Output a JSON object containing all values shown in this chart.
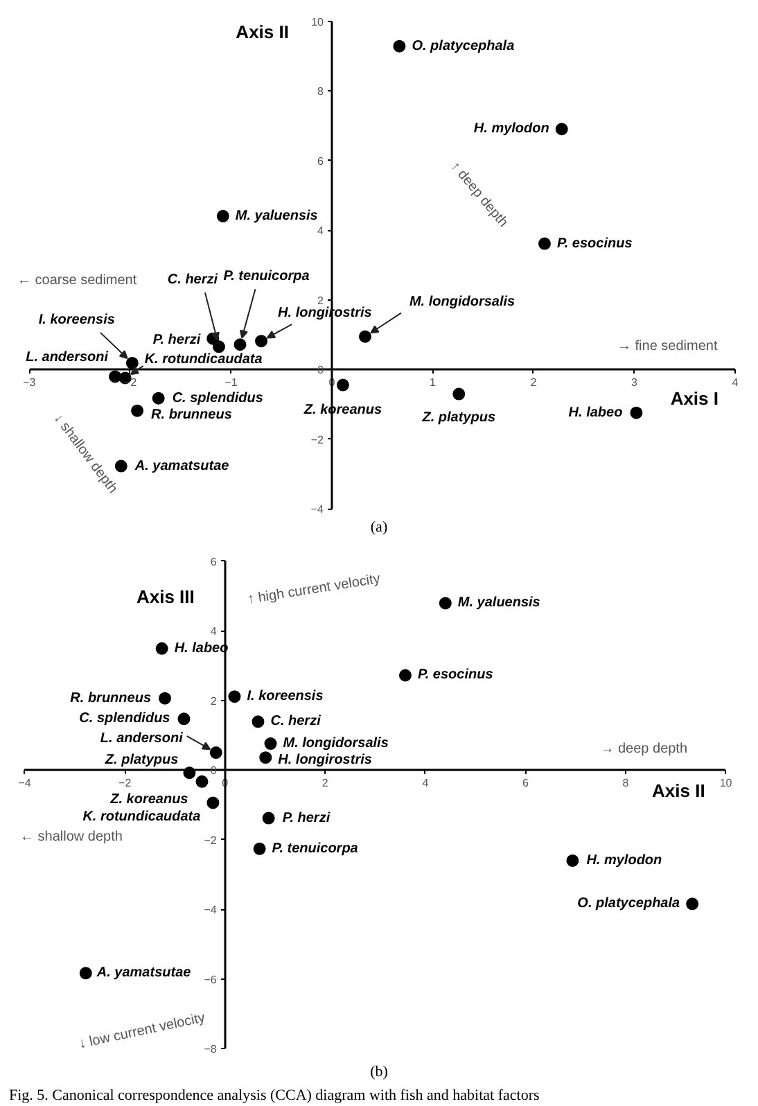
{
  "chart_data": [
    {
      "type": "scatter",
      "xlabel": "Axis I",
      "ylabel": "Axis II",
      "xlim": [
        -3,
        4
      ],
      "ylim": [
        -4,
        10
      ],
      "xticks": [
        -3,
        -2,
        -1,
        0,
        1,
        2,
        3,
        4
      ],
      "yticks": [
        -4,
        -2,
        0,
        2,
        4,
        6,
        8,
        10
      ],
      "marker": "circle",
      "annotations": [
        "← coarse sediment",
        "→ fine sediment",
        "↑ deep depth",
        "↓ shallow depth",
        "(a)"
      ],
      "series": [
        {
          "name": "O. platycephala",
          "color": "#000000",
          "x": [
            0.67
          ],
          "values": [
            9.29
          ]
        },
        {
          "name": "H. mylodon",
          "color": "#000000",
          "x": [
            2.28
          ],
          "values": [
            6.91
          ]
        },
        {
          "name": "M. yaluensis",
          "color": "#000000",
          "x": [
            -1.08
          ],
          "values": [
            4.41
          ]
        },
        {
          "name": "P. esocinus",
          "color": "#000000",
          "x": [
            2.11
          ],
          "values": [
            3.62
          ]
        },
        {
          "name": "C. herzi",
          "color": "#000000",
          "x": [
            -1.12
          ],
          "values": [
            0.66
          ]
        },
        {
          "name": "P. tenuicorpa",
          "color": "#000000",
          "x": [
            -0.91
          ],
          "values": [
            0.72
          ]
        },
        {
          "name": "H. longirostris",
          "color": "#000000",
          "x": [
            -0.7
          ],
          "values": [
            0.82
          ]
        },
        {
          "name": "M. longidorsalis",
          "color": "#000000",
          "x": [
            0.33
          ],
          "values": [
            0.95
          ]
        },
        {
          "name": "I. koreensis",
          "color": "#000000",
          "x": [
            -1.98
          ],
          "values": [
            0.19
          ]
        },
        {
          "name": "P. herzi",
          "color": "#000000",
          "x": [
            -1.18
          ],
          "values": [
            0.89
          ]
        },
        {
          "name": "L. andersoni",
          "color": "#000000",
          "x": [
            -2.15
          ],
          "values": [
            -0.2
          ]
        },
        {
          "name": "K. rotundicaudata",
          "color": "#000000",
          "x": [
            -2.05
          ],
          "values": [
            -0.24
          ]
        },
        {
          "name": "C. splendidus",
          "color": "#000000",
          "x": [
            -1.72
          ],
          "values": [
            -0.82
          ]
        },
        {
          "name": "R. brunneus",
          "color": "#000000",
          "x": [
            -1.93
          ],
          "values": [
            -1.18
          ]
        },
        {
          "name": "Z. koreanus",
          "color": "#000000",
          "x": [
            0.11
          ],
          "values": [
            -0.44
          ]
        },
        {
          "name": "Z. platypus",
          "color": "#000000",
          "x": [
            1.26
          ],
          "values": [
            -0.7
          ]
        },
        {
          "name": "H. labeo",
          "color": "#000000",
          "x": [
            3.02
          ],
          "values": [
            -1.24
          ]
        },
        {
          "name": "A. yamatsutae",
          "color": "#000000",
          "x": [
            -2.09
          ],
          "values": [
            -2.77
          ]
        }
      ]
    },
    {
      "type": "scatter",
      "xlabel": "Axis II",
      "ylabel": "Axis III",
      "xlim": [
        -4,
        10
      ],
      "ylim": [
        -8,
        6
      ],
      "xticks": [
        -4,
        -2,
        0,
        2,
        4,
        6,
        8,
        10
      ],
      "yticks": [
        -8,
        -6,
        -4,
        -2,
        0,
        2,
        4,
        6
      ],
      "marker": "circle",
      "annotations": [
        "↑ high current velocity",
        "→ deep depth",
        "← shallow depth",
        "↓ low current velocity",
        "(b)",
        "Fig. 5. Canonical correspondence analysis (CCA) diagram with fish and habitat factors"
      ],
      "series": [
        {
          "name": "O. platycephala",
          "color": "#000000",
          "x": [
            9.33
          ],
          "values": [
            -3.84
          ]
        },
        {
          "name": "H. mylodon",
          "color": "#000000",
          "x": [
            6.94
          ],
          "values": [
            -2.6
          ]
        },
        {
          "name": "M. yaluensis",
          "color": "#000000",
          "x": [
            4.4
          ],
          "values": [
            4.79
          ]
        },
        {
          "name": "P. esocinus",
          "color": "#000000",
          "x": [
            3.6
          ],
          "values": [
            2.72
          ]
        },
        {
          "name": "C. herzi",
          "color": "#000000",
          "x": [
            0.66
          ],
          "values": [
            1.39
          ]
        },
        {
          "name": "P. tenuicorpa",
          "color": "#000000",
          "x": [
            0.69
          ],
          "values": [
            -2.26
          ]
        },
        {
          "name": "H. longirostris",
          "color": "#000000",
          "x": [
            0.81
          ],
          "values": [
            0.36
          ]
        },
        {
          "name": "M. longidorsalis",
          "color": "#000000",
          "x": [
            0.91
          ],
          "values": [
            0.76
          ]
        },
        {
          "name": "I. koreensis",
          "color": "#000000",
          "x": [
            0.19
          ],
          "values": [
            2.11
          ]
        },
        {
          "name": "P. herzi",
          "color": "#000000",
          "x": [
            0.87
          ],
          "values": [
            -1.38
          ]
        },
        {
          "name": "L. andersoni",
          "color": "#000000",
          "x": [
            -0.18
          ],
          "values": [
            0.5
          ]
        },
        {
          "name": "K. rotundicaudata",
          "color": "#000000",
          "x": [
            -0.24
          ],
          "values": [
            -0.94
          ]
        },
        {
          "name": "C. splendidus",
          "color": "#000000",
          "x": [
            -0.82
          ],
          "values": [
            1.47
          ]
        },
        {
          "name": "R. brunneus",
          "color": "#000000",
          "x": [
            -1.2
          ],
          "values": [
            2.06
          ]
        },
        {
          "name": "Z. koreanus",
          "color": "#000000",
          "x": [
            -0.46
          ],
          "values": [
            -0.33
          ]
        },
        {
          "name": "Z. platypus",
          "color": "#000000",
          "x": [
            -0.71
          ],
          "values": [
            -0.08
          ]
        },
        {
          "name": "H. labeo",
          "color": "#000000",
          "x": [
            -1.26
          ],
          "values": [
            3.49
          ]
        },
        {
          "name": "A. yamatsutae",
          "color": "#000000",
          "x": [
            -2.78
          ],
          "values": [
            -5.83
          ]
        }
      ]
    }
  ]
}
